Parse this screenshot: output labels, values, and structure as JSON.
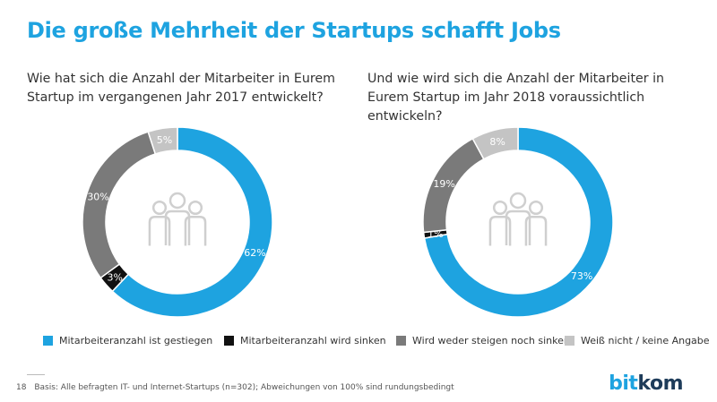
{
  "title": "Die große Mehrheit der Startups schafft Jobs",
  "colors": {
    "blue": "#1ea3e0",
    "black": "#111111",
    "darkgray": "#7a7a7a",
    "lightgray": "#c4c4c4"
  },
  "chart_data": [
    {
      "type": "pie",
      "title": "Wie hat sich die Anzahl der Mitarbeiter in Eurem Startup im vergangenen Jahr 2017 entwickelt?",
      "slices": [
        {
          "name": "Mitarbeiteranzahl ist gestiegen",
          "value": 62,
          "label": "62%"
        },
        {
          "name": "Mitarbeiteranzahl wird sinken",
          "value": 3,
          "label": "3%"
        },
        {
          "name": "Wird weder steigen noch sinken",
          "value": 30,
          "label": "30%"
        },
        {
          "name": "Weiß nicht / keine Angabe",
          "value": 5,
          "label": "5%"
        }
      ]
    },
    {
      "type": "pie",
      "title": "Und wie wird sich die Anzahl der Mitarbeiter in Eurem Startup im Jahr 2018 voraussichtlich entwickeln?",
      "slices": [
        {
          "name": "Mitarbeiteranzahl ist gestiegen",
          "value": 73,
          "label": "73%"
        },
        {
          "name": "Mitarbeiteranzahl wird sinken",
          "value": 1,
          "label": "1%"
        },
        {
          "name": "Wird weder steigen noch sinken",
          "value": 19,
          "label": "19%"
        },
        {
          "name": "Weiß nicht / keine Angabe",
          "value": 8,
          "label": "8%"
        }
      ]
    }
  ],
  "legend": [
    {
      "label": "Mitarbeiteranzahl ist gestiegen",
      "color": "#1ea3e0"
    },
    {
      "label": "Mitarbeiteranzahl wird sinken",
      "color": "#111111"
    },
    {
      "label": "Wird weder steigen noch sinken",
      "color": "#7a7a7a"
    },
    {
      "label": "Weiß nicht / keine Angabe",
      "color": "#c4c4c4"
    }
  ],
  "footer": {
    "page_number": "18",
    "note": "Basis: Alle befragten IT- und Internet-Startups (n=302); Abweichungen von 100% sind rundungsbedingt"
  },
  "logo": {
    "part1": "bit",
    "part2": "kom"
  }
}
